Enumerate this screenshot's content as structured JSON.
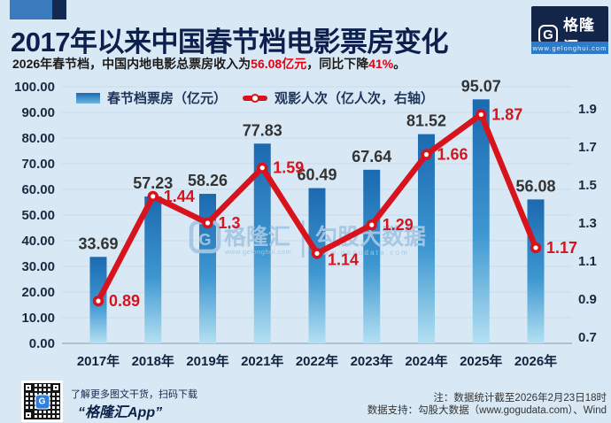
{
  "header": {
    "title": "2017年以来中国春节档电影票房变化",
    "subtitle_prefix": "2026年春节档，中国内地电影总票房收入为",
    "subtitle_highlight1": "56.08亿元",
    "subtitle_mid": "，同比下降",
    "subtitle_highlight2": "41%",
    "subtitle_suffix": "。",
    "logo": {
      "monogram": "G",
      "brand": "格隆汇",
      "url": "www.gelonghui.com"
    }
  },
  "chart_data": {
    "type": "bar+line combo",
    "title": "2017年以来中国春节档电影票房变化",
    "categories": [
      "2017年",
      "2018年",
      "2019年",
      "2021年",
      "2022年",
      "2023年",
      "2024年",
      "2025年",
      "2026年"
    ],
    "series": [
      {
        "name": "春节档票房（亿元）",
        "type": "bar",
        "axis": "left",
        "values": [
          33.69,
          57.23,
          58.26,
          77.83,
          60.49,
          67.64,
          81.52,
          95.07,
          56.08
        ],
        "labels": [
          "33.69",
          "57.23",
          "58.26",
          "77.83",
          "60.49",
          "67.64",
          "81.52",
          "95.07",
          "56.08"
        ]
      },
      {
        "name": "观影人次（亿人次，右轴）",
        "type": "line",
        "axis": "right",
        "values": [
          0.89,
          1.44,
          1.3,
          1.59,
          1.14,
          1.29,
          1.66,
          1.87,
          1.17
        ],
        "labels": [
          "0.89",
          "1.44",
          "1.3",
          "1.59",
          "1.14",
          "1.29",
          "1.66",
          "1.87",
          "1.17"
        ]
      }
    ],
    "left_axis": {
      "min": 0,
      "max": 100,
      "step": 10,
      "ticks": [
        "100.00",
        "90.00",
        "80.00",
        "70.00",
        "60.00",
        "50.00",
        "40.00",
        "30.00",
        "20.00",
        "10.00",
        "0.00"
      ]
    },
    "right_axis": {
      "min": 0.7,
      "max": 1.9,
      "step": 0.2,
      "ticks": [
        "1.9",
        "1.7",
        "1.5",
        "1.3",
        "1.1",
        "0.9",
        "0.7"
      ]
    },
    "grid": true,
    "legend_position": "top-left",
    "colors": {
      "background": "#d8e9f5",
      "bar_gradient_top": "#1c69b0",
      "bar_gradient_mid": "#3e97d1",
      "bar_gradient_bottom": "#b4e0f2",
      "line": "#d7141d",
      "bar_label": "#333333",
      "line_label": "#d7141d",
      "grid": "#c8dbe9",
      "axis_line": "#9fb6c9",
      "tick_label": "#1b2940"
    }
  },
  "watermark": {
    "monogram": "G",
    "brand": "格隆汇",
    "brand_url": "www.gelonghui.com",
    "divider": "|",
    "partner": "勾股大数据",
    "partner_url": "www.gogudata.com"
  },
  "footer": {
    "qr_badge": "G",
    "qr_caption_line1": "了解更多图文干货，扫码下载",
    "qr_caption_line2": "“格隆汇App”",
    "note_line1": "注：数据统计截至2026年2月23日18时",
    "note_line2": "数据支持：勾股大数据（www.gogudata.com）、Wind"
  }
}
